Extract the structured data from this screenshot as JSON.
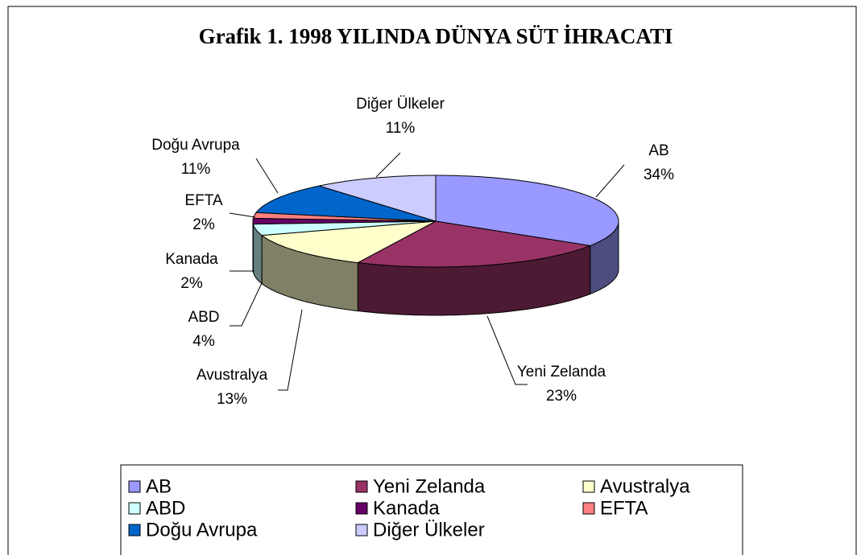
{
  "chart_data": {
    "type": "pie",
    "title": "Grafik 1. 1998 YILINDA DÜNYA SÜT İHRACATI",
    "categories": [
      "AB",
      "Yeni Zelanda",
      "Avustralya",
      "ABD",
      "Kanada",
      "EFTA",
      "Doğu Avrupa",
      "Diğer Ülkeler"
    ],
    "values": [
      34,
      23,
      13,
      4,
      2,
      2,
      11,
      11
    ],
    "value_labels": [
      "34%",
      "23%",
      "13%",
      "4%",
      "2%",
      "2%",
      "11%",
      "11%"
    ],
    "colors": [
      "#9999ff",
      "#993366",
      "#ffffcc",
      "#ccffff",
      "#660066",
      "#ff8080",
      "#0066cc",
      "#ccccff"
    ],
    "legend": "bottom"
  }
}
